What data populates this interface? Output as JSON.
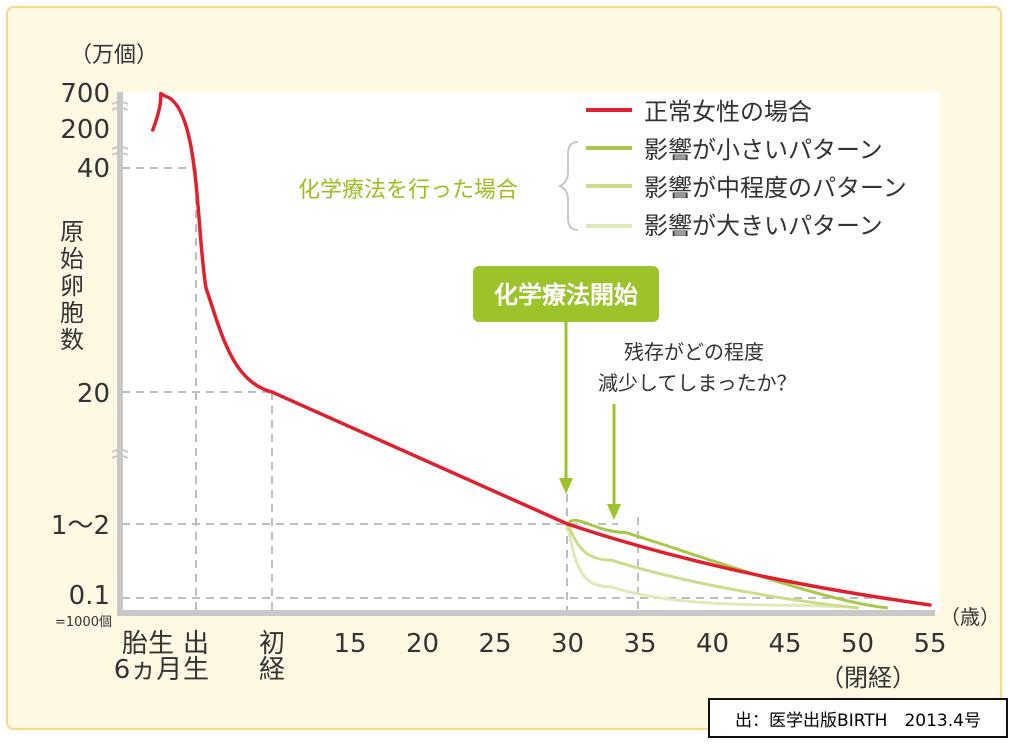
{
  "chart_data": {
    "type": "line",
    "ylabel": "原始卵胞数",
    "yunit": "（万個）",
    "xunit": "（歳）",
    "yticks": [
      "700",
      "200",
      "40",
      "20",
      "1〜2",
      "0.1",
      "=1000個"
    ],
    "xticks": [
      {
        "label": "胎生\n6ヵ月",
        "x": -0.5
      },
      {
        "label": "出\n生",
        "x": 0
      },
      {
        "label": "初\n経",
        "x": 12
      },
      {
        "label": "15",
        "x": 15
      },
      {
        "label": "20",
        "x": 20
      },
      {
        "label": "25",
        "x": 25
      },
      {
        "label": "30",
        "x": 30
      },
      {
        "label": "35",
        "x": 35
      },
      {
        "label": "40",
        "x": 40
      },
      {
        "label": "45",
        "x": 45
      },
      {
        "label": "50",
        "x": 50
      },
      {
        "label": "55",
        "x": 55
      }
    ],
    "menopause_label": "（閉経）",
    "series": [
      {
        "name": "正常女性の場合",
        "color": "#e0202e",
        "points": [
          [
            -0.6,
            200
          ],
          [
            -0.5,
            700
          ],
          [
            0,
            40
          ],
          [
            12,
            20
          ],
          [
            30,
            1.5
          ],
          [
            55,
            0.05
          ]
        ]
      },
      {
        "name": "影響が小さいパターン",
        "color": "#a8c84a",
        "points": [
          [
            30,
            1.5
          ],
          [
            34,
            1.1
          ],
          [
            52,
            0.03
          ]
        ]
      },
      {
        "name": "影響が中程度のパターン",
        "color": "#c9dd8a",
        "points": [
          [
            30,
            1.5
          ],
          [
            33,
            0.4
          ],
          [
            50,
            0.03
          ]
        ]
      },
      {
        "name": "影響が大きいパターン",
        "color": "#dfeab9",
        "points": [
          [
            30,
            1.5
          ],
          [
            33,
            0.15
          ],
          [
            50,
            0.03
          ]
        ]
      }
    ],
    "legend_group_label": "化学療法を行った場合",
    "annotations": {
      "start_label": "化学療法開始",
      "start_x": 30,
      "question_line1": "残存がどの程度",
      "question_line2": "減少してしまったか？",
      "question_x": 33.5
    },
    "legend_position": "top-right",
    "grid": false
  },
  "source": "出：医学出版BIRTH　2013.4号"
}
